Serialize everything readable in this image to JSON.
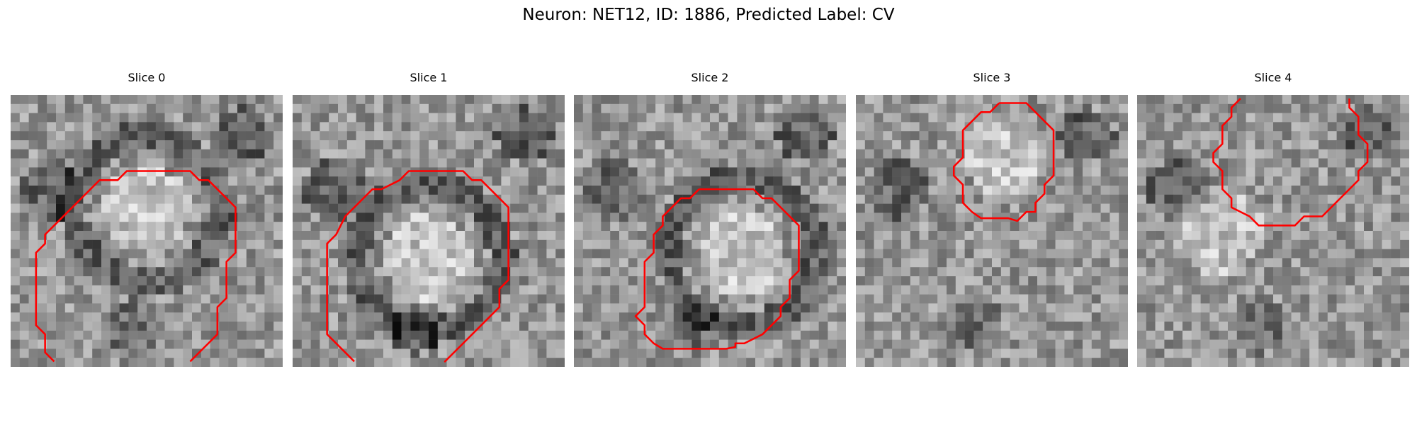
{
  "figure": {
    "title": "Neuron: NET12, ID: 1886, Predicted Label: CV",
    "contour_color": "#ff0000",
    "panels": [
      {
        "title": "Slice 0",
        "seed": 11,
        "bright_center": [
          0.5,
          0.42
        ],
        "dark_ring": true
      },
      {
        "title": "Slice 1",
        "seed": 23,
        "bright_center": [
          0.5,
          0.6
        ],
        "dark_ring": true
      },
      {
        "title": "Slice 2",
        "seed": 37,
        "bright_center": [
          0.62,
          0.58
        ],
        "dark_ring": true
      },
      {
        "title": "Slice 3",
        "seed": 41,
        "bright_center": [
          0.55,
          0.22
        ],
        "dark_ring": false
      },
      {
        "title": "Slice 4",
        "seed": 53,
        "bright_center": [
          0.3,
          0.5
        ],
        "dark_ring": false
      }
    ]
  }
}
